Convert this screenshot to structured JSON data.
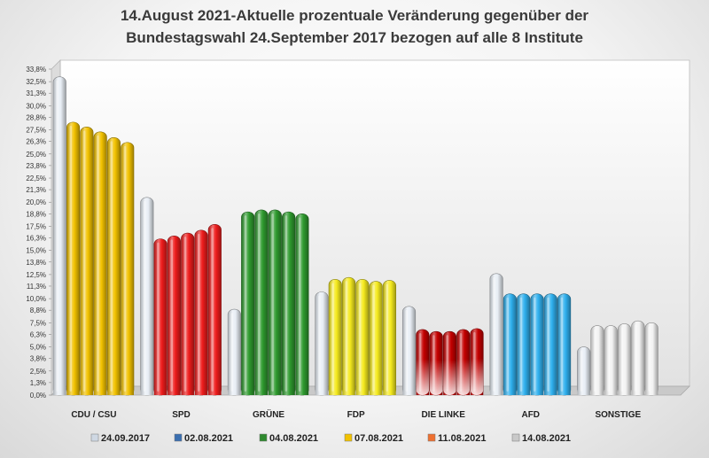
{
  "chart_data": {
    "type": "bar",
    "title_line1": "14.August 2021-Aktuelle prozentuale Veränderung gegenüber der",
    "title_line2": "Bundestagswahl 24.September 2017 bezogen auf alle 8 Institute",
    "categories": [
      "CDU / CSU",
      "SPD",
      "GRÜNE",
      "FDP",
      "DIE LINKE",
      "AFD",
      "SONSTIGE"
    ],
    "series": [
      {
        "name": "24.09.2017",
        "values": [
          33.0,
          20.5,
          8.9,
          10.7,
          9.2,
          12.6,
          5.0
        ]
      },
      {
        "name": "02.08.2021",
        "values": [
          28.3,
          16.2,
          19.0,
          12.0,
          6.8,
          10.5,
          7.2
        ]
      },
      {
        "name": "04.08.2021",
        "values": [
          27.8,
          16.5,
          19.2,
          12.2,
          6.6,
          10.5,
          7.2
        ]
      },
      {
        "name": "07.08.2021",
        "values": [
          27.3,
          16.8,
          19.2,
          12.0,
          6.6,
          10.5,
          7.4
        ]
      },
      {
        "name": "11.08.2021",
        "values": [
          26.7,
          17.1,
          19.0,
          11.8,
          6.8,
          10.5,
          7.7
        ]
      },
      {
        "name": "14.08.2021",
        "values": [
          26.2,
          17.7,
          18.8,
          11.9,
          6.9,
          10.5,
          7.5
        ]
      }
    ],
    "party_colors": [
      "#f2c200",
      "#ee1c1c",
      "#2e9a2e",
      "#f5ea1e",
      "#c40000",
      "#2fb0ee",
      "#f3f3f3"
    ],
    "baseline_color": "#e8eef5",
    "y_ticks": [
      "0,0%",
      "1,3%",
      "2,5%",
      "3,8%",
      "5,0%",
      "6,3%",
      "7,5%",
      "8,8%",
      "10,0%",
      "11,3%",
      "12,5%",
      "13,8%",
      "15,0%",
      "16,3%",
      "17,5%",
      "18,8%",
      "20,0%",
      "21,3%",
      "22,5%",
      "23,8%",
      "25,0%",
      "26,3%",
      "27,5%",
      "28,8%",
      "30,0%",
      "31,3%",
      "32,5%",
      "33,8%"
    ],
    "ylim": [
      0,
      33.8
    ],
    "grid": false,
    "legend_position": "bottom"
  }
}
